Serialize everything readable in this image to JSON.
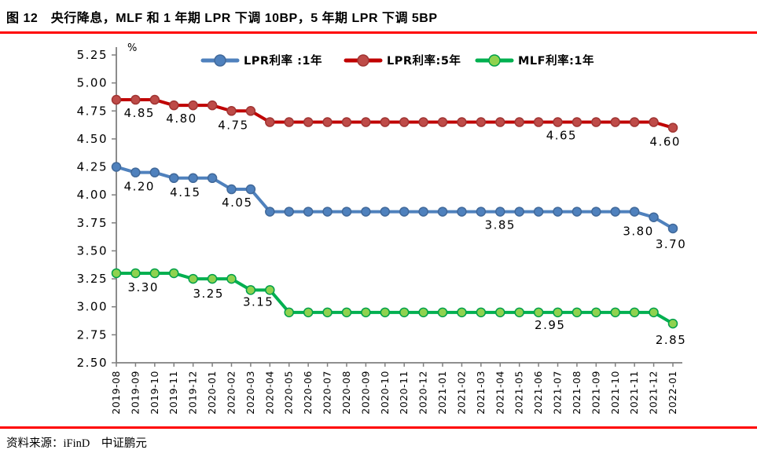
{
  "title": "图 12　央行降息，MLF 和 1 年期 LPR 下调 10BP，5 年期 LPR 下调 5BP",
  "footer": {
    "text": "资料来源：iFinD　中证鹏元"
  },
  "accent_rule_color": "#FF0000",
  "chart_data": {
    "type": "line",
    "unit": "%",
    "grid": false,
    "legend_position": "top",
    "axis_color": "#7F7F7F",
    "ylim": [
      2.5,
      5.25
    ],
    "yticks": [
      "2.50",
      "2.75",
      "3.00",
      "3.25",
      "3.50",
      "3.75",
      "4.00",
      "4.25",
      "4.50",
      "4.75",
      "5.00",
      "5.25"
    ],
    "x": [
      "2019-08",
      "2019-09",
      "2019-10",
      "2019-11",
      "2019-12",
      "2020-01",
      "2020-02",
      "2020-03",
      "2020-04",
      "2020-05",
      "2020-06",
      "2020-07",
      "2020-08",
      "2020-09",
      "2020-10",
      "2020-11",
      "2020-12",
      "2021-01",
      "2021-02",
      "2021-03",
      "2021-04",
      "2021-05",
      "2021-06",
      "2021-07",
      "2021-08",
      "2021-09",
      "2021-10",
      "2021-11",
      "2021-12",
      "2022-01"
    ],
    "series": [
      {
        "name": "LPR利率 :1年",
        "key": "lpr-1y",
        "color": "#4F81BD",
        "marker_fill": "#4F81BD",
        "marker_stroke": "#41699A",
        "values": [
          4.25,
          4.2,
          4.2,
          4.15,
          4.15,
          4.15,
          4.05,
          4.05,
          3.85,
          3.85,
          3.85,
          3.85,
          3.85,
          3.85,
          3.85,
          3.85,
          3.85,
          3.85,
          3.85,
          3.85,
          3.85,
          3.85,
          3.85,
          3.85,
          3.85,
          3.85,
          3.85,
          3.85,
          3.8,
          3.7
        ],
        "labels": [
          {
            "text": "4.20",
            "i": 1.2,
            "v": 4.2,
            "dy": 23
          },
          {
            "text": "4.15",
            "i": 3.6,
            "v": 4.15,
            "dy": 23
          },
          {
            "text": "4.05",
            "i": 6.3,
            "v": 4.05,
            "dy": 22
          },
          {
            "text": "3.85",
            "i": 20.0,
            "v": 3.85,
            "dy": 22
          },
          {
            "text": "3.80",
            "i": 27.2,
            "v": 3.8,
            "dy": 23
          },
          {
            "text": "3.70",
            "i": 28.9,
            "v": 3.7,
            "dy": 25
          }
        ]
      },
      {
        "name": "LPR利率:5年",
        "key": "lpr-5y",
        "color": "#C00000",
        "marker_fill": "#BE4B48",
        "marker_stroke": "#A03533",
        "values": [
          4.85,
          4.85,
          4.85,
          4.8,
          4.8,
          4.8,
          4.75,
          4.75,
          4.65,
          4.65,
          4.65,
          4.65,
          4.65,
          4.65,
          4.65,
          4.65,
          4.65,
          4.65,
          4.65,
          4.65,
          4.65,
          4.65,
          4.65,
          4.65,
          4.65,
          4.65,
          4.65,
          4.65,
          4.65,
          4.6
        ],
        "labels": [
          {
            "text": "4.85",
            "i": 1.2,
            "v": 4.85,
            "dy": 22
          },
          {
            "text": "4.80",
            "i": 3.4,
            "v": 4.8,
            "dy": 22
          },
          {
            "text": "4.75",
            "i": 6.1,
            "v": 4.75,
            "dy": 23
          },
          {
            "text": "4.65",
            "i": 23.2,
            "v": 4.65,
            "dy": 22
          },
          {
            "text": "4.60",
            "i": 28.6,
            "v": 4.6,
            "dy": 23
          }
        ]
      },
      {
        "name": "MLF利率:1年",
        "key": "mlf-1y",
        "color": "#00B050",
        "marker_fill": "#8FD24F",
        "marker_stroke": "#00A04A",
        "values": [
          3.3,
          3.3,
          3.3,
          3.3,
          3.25,
          3.25,
          3.25,
          3.15,
          3.15,
          2.95,
          2.95,
          2.95,
          2.95,
          2.95,
          2.95,
          2.95,
          2.95,
          2.95,
          2.95,
          2.95,
          2.95,
          2.95,
          2.95,
          2.95,
          2.95,
          2.95,
          2.95,
          2.95,
          2.95,
          2.85
        ],
        "labels": [
          {
            "text": "3.30",
            "i": 1.4,
            "v": 3.3,
            "dy": 23
          },
          {
            "text": "3.25",
            "i": 4.8,
            "v": 3.25,
            "dy": 24
          },
          {
            "text": "3.15",
            "i": 7.4,
            "v": 3.15,
            "dy": 20
          },
          {
            "text": "2.95",
            "i": 22.6,
            "v": 2.95,
            "dy": 21
          },
          {
            "text": "2.85",
            "i": 28.9,
            "v": 2.85,
            "dy": 26
          }
        ]
      }
    ]
  }
}
